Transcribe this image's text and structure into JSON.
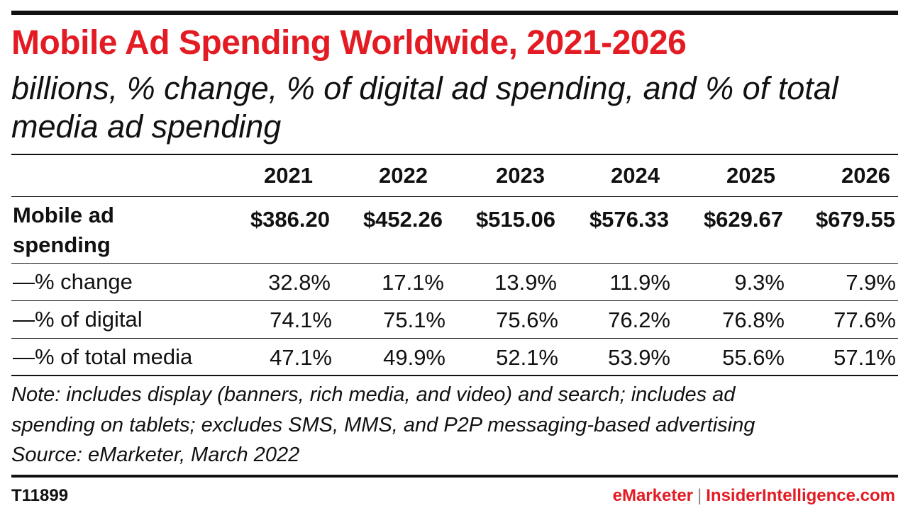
{
  "title": "Mobile Ad Spending Worldwide, 2021-2026",
  "subtitle": "billions, % change, % of digital ad spending, and % of total media ad spending",
  "chart_data": {
    "type": "table",
    "columns": [
      "2021",
      "2022",
      "2023",
      "2024",
      "2025",
      "2026"
    ],
    "rows": [
      {
        "label": "Mobile ad spending",
        "values": [
          "$386.20",
          "$452.26",
          "$515.06",
          "$576.33",
          "$629.67",
          "$679.55"
        ]
      },
      {
        "label": "—% change",
        "values": [
          "32.8%",
          "17.1%",
          "13.9%",
          "11.9%",
          "9.3%",
          "7.9%"
        ]
      },
      {
        "label": "—% of digital",
        "values": [
          "74.1%",
          "75.1%",
          "75.6%",
          "76.2%",
          "76.8%",
          "77.6%"
        ]
      },
      {
        "label": "—% of total media",
        "values": [
          "47.1%",
          "49.9%",
          "52.1%",
          "53.9%",
          "55.6%",
          "57.1%"
        ]
      }
    ]
  },
  "notes": {
    "line1": "Note: includes display (banners, rich media, and video) and search; includes ad",
    "line2": "spending on tablets; excludes SMS, MMS, and P2P messaging-based advertising",
    "source": "Source: eMarketer, March 2022"
  },
  "footer": {
    "id": "T11899",
    "brand_emarketer": "eMarketer",
    "brand_separator": "|",
    "brand_insider": "InsiderIntelligence.com"
  },
  "colors": {
    "accent": "#e31b23",
    "text": "#111111"
  }
}
